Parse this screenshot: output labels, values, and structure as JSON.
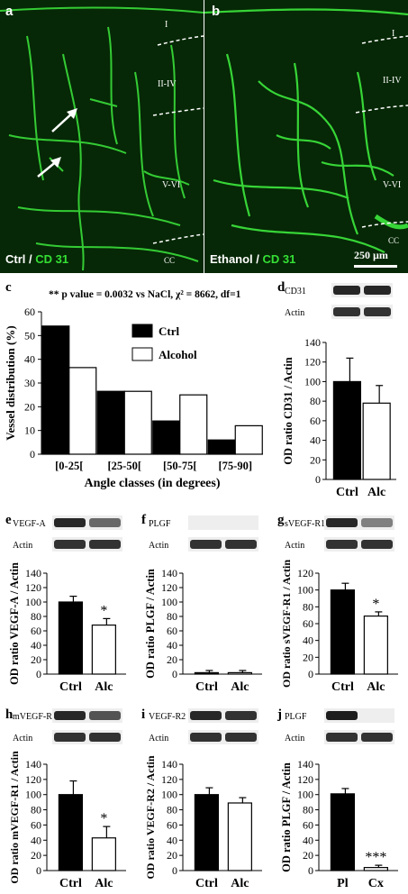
{
  "panel_a": {
    "letter": "a",
    "caption_ctrl": "Ctrl",
    "caption_sep": " / ",
    "caption_marker": "CD 31",
    "layers": [
      "I",
      "II-IV",
      "V-VI",
      "CC"
    ]
  },
  "panel_b": {
    "letter": "b",
    "caption_ctrl": "Ethanol",
    "caption_sep": " / ",
    "caption_marker": "CD 31",
    "layers": [
      "I",
      "II-IV",
      "V-VI",
      "CC"
    ],
    "scale_bar": "250 µm"
  },
  "colors": {
    "micro_bg": "#062806",
    "vessel": "#3de83d",
    "caption_green": "#35e035"
  },
  "chart_data": [
    {
      "panel": "c",
      "type": "bar",
      "annotation": "** p value = 0.0032 vs NaCl, χ² = 8662, df=1",
      "categories": [
        "[0-25[",
        "[25-50[",
        "[50-75[",
        "[75-90]"
      ],
      "series": [
        {
          "name": "Ctrl",
          "values": [
            54,
            26.5,
            14,
            6
          ]
        },
        {
          "name": "Alcohol",
          "values": [
            36.5,
            26.5,
            25,
            12
          ]
        }
      ],
      "xlabel": "Angle classes (in degrees)",
      "ylabel": "Vessel distribution  (%)",
      "ylim": [
        0,
        60
      ],
      "yticks": [
        "0",
        "10",
        "20",
        "30",
        "40",
        "50",
        "60"
      ]
    },
    {
      "panel": "d",
      "type": "bar",
      "blots": [
        "CD31",
        "Actin"
      ],
      "categories": [
        "Ctrl",
        "Alc"
      ],
      "values": [
        100,
        78
      ],
      "errors": [
        24,
        18
      ],
      "ylabel": "OD ratio CD31 / Actin",
      "ylim": [
        0,
        140
      ],
      "yticks": [
        "0",
        "20",
        "40",
        "60",
        "80",
        "100",
        "120",
        "140"
      ],
      "significance": [
        "",
        ""
      ]
    },
    {
      "panel": "e",
      "type": "bar",
      "blots": [
        "VEGF-A",
        "Actin"
      ],
      "categories": [
        "Ctrl",
        "Alc"
      ],
      "values": [
        100,
        68
      ],
      "errors": [
        8,
        9
      ],
      "ylabel": "OD ratio VEGF-A / Actin",
      "ylim": [
        0,
        140
      ],
      "yticks": [
        "0",
        "20",
        "40",
        "60",
        "80",
        "100",
        "120",
        "140"
      ],
      "significance": [
        "",
        "*"
      ]
    },
    {
      "panel": "f",
      "type": "bar",
      "blots": [
        "PLGF",
        "Actin"
      ],
      "categories": [
        "Ctrl",
        "Alc"
      ],
      "values": [
        2,
        2
      ],
      "errors": [
        3,
        3
      ],
      "ylabel": "OD ratio PLGF / Actin",
      "ylim": [
        0,
        140
      ],
      "yticks": [
        "0",
        "20",
        "40",
        "60",
        "80",
        "100",
        "120",
        "140"
      ],
      "significance": [
        "",
        ""
      ]
    },
    {
      "panel": "g",
      "type": "bar",
      "blots": [
        "sVEGF-R1",
        "Actin"
      ],
      "categories": [
        "Ctrl",
        "Alc"
      ],
      "values": [
        100,
        69
      ],
      "errors": [
        8,
        5
      ],
      "ylabel": "OD ratio sVEGF-R1 / Actin",
      "ylim": [
        0,
        120
      ],
      "yticks": [
        "0",
        "20",
        "40",
        "60",
        "80",
        "100",
        "120"
      ],
      "significance": [
        "",
        "*"
      ]
    },
    {
      "panel": "h",
      "type": "bar",
      "blots": [
        "mVEGF-R1",
        "Actin"
      ],
      "categories": [
        "Ctrl",
        "Alc"
      ],
      "values": [
        100,
        43
      ],
      "errors": [
        18,
        15
      ],
      "ylabel": "OD ratio mVEGF-R1 / Actin",
      "ylim": [
        0,
        140
      ],
      "yticks": [
        "0",
        "20",
        "40",
        "60",
        "80",
        "100",
        "120",
        "140"
      ],
      "significance": [
        "",
        "*"
      ]
    },
    {
      "panel": "i",
      "type": "bar",
      "blots": [
        "VEGF-R2",
        "Actin"
      ],
      "categories": [
        "Ctrl",
        "Alc"
      ],
      "values": [
        100,
        89
      ],
      "errors": [
        9,
        7
      ],
      "ylabel": "OD ratio VEGF-R2 / Actin",
      "ylim": [
        0,
        140
      ],
      "yticks": [
        "0",
        "20",
        "40",
        "60",
        "80",
        "100",
        "120",
        "140"
      ],
      "significance": [
        "",
        ""
      ]
    },
    {
      "panel": "j",
      "type": "bar",
      "blots": [
        "PLGF",
        "Actin"
      ],
      "categories": [
        "Pl",
        "Cx"
      ],
      "values": [
        101,
        4
      ],
      "errors": [
        7,
        3
      ],
      "ylabel": "OD ratio PLGF / Actin",
      "ylim": [
        0,
        140
      ],
      "yticks": [
        "0",
        "20",
        "40",
        "60",
        "80",
        "100",
        "120",
        "140"
      ],
      "significance": [
        "",
        "***"
      ]
    }
  ]
}
